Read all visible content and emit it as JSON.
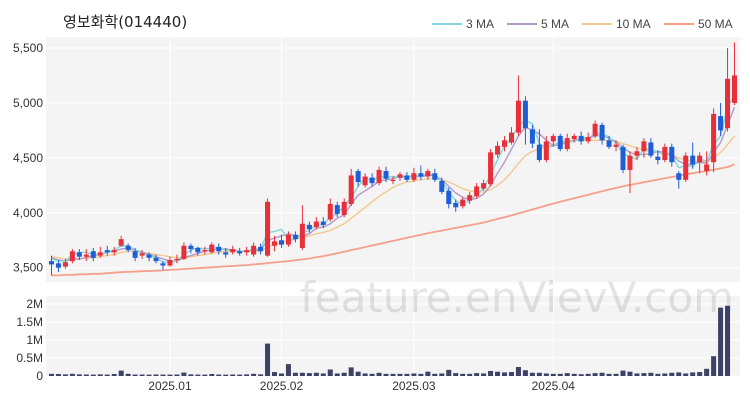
{
  "title": "영보화학(014440)",
  "watermark": "feature.enVievV.com",
  "legend": [
    {
      "label": "3 MA",
      "color": "#7fd6db"
    },
    {
      "label": "5 MA",
      "color": "#b39ac9"
    },
    {
      "label": "10 MA",
      "color": "#f2c98e"
    },
    {
      "label": "50 MA",
      "color": "#f4a08c"
    }
  ],
  "colors": {
    "up": "#e8303a",
    "down": "#1f5fd6",
    "volume": "#3d4266",
    "panel_bg": "#f4f4f4"
  },
  "chart_data": {
    "type": "candlestick",
    "x_tick_labels": [
      "2025.01",
      "2025.02",
      "2025.03",
      "2025.04"
    ],
    "price_axis": {
      "ticks": [
        3500,
        4000,
        4500,
        5000,
        5500
      ],
      "labels": [
        "3,500",
        "4,000",
        "4,500",
        "5,000",
        "5,500"
      ],
      "ylim": [
        3370,
        5600
      ]
    },
    "volume_axis": {
      "ticks": [
        0,
        500000,
        1000000,
        1500000,
        2000000
      ],
      "labels": [
        "0",
        "0.5M",
        "1M",
        "1.5M",
        "2M"
      ],
      "ylim": [
        0,
        2000000
      ]
    },
    "tick_positions": [
      17,
      33,
      52,
      72
    ],
    "candles": [
      [
        3560,
        3530,
        3610,
        3430
      ],
      [
        3540,
        3500,
        3570,
        3460
      ],
      [
        3510,
        3550,
        3580,
        3490
      ],
      [
        3560,
        3650,
        3670,
        3540
      ],
      [
        3640,
        3600,
        3670,
        3570
      ],
      [
        3600,
        3620,
        3670,
        3560
      ],
      [
        3650,
        3590,
        3680,
        3560
      ],
      [
        3610,
        3640,
        3690,
        3590
      ],
      [
        3660,
        3640,
        3700,
        3610
      ],
      [
        3640,
        3660,
        3690,
        3610
      ],
      [
        3700,
        3760,
        3790,
        3690
      ],
      [
        3700,
        3660,
        3720,
        3640
      ],
      [
        3650,
        3590,
        3680,
        3560
      ],
      [
        3610,
        3630,
        3660,
        3580
      ],
      [
        3620,
        3590,
        3640,
        3560
      ],
      [
        3590,
        3560,
        3620,
        3540
      ],
      [
        3540,
        3520,
        3560,
        3480
      ],
      [
        3520,
        3570,
        3600,
        3510
      ],
      [
        3570,
        3580,
        3620,
        3540
      ],
      [
        3580,
        3700,
        3730,
        3570
      ],
      [
        3700,
        3670,
        3720,
        3630
      ],
      [
        3680,
        3640,
        3690,
        3610
      ],
      [
        3660,
        3660,
        3690,
        3620
      ],
      [
        3640,
        3710,
        3730,
        3630
      ],
      [
        3690,
        3650,
        3720,
        3620
      ],
      [
        3640,
        3620,
        3680,
        3590
      ],
      [
        3640,
        3670,
        3700,
        3620
      ],
      [
        3650,
        3630,
        3680,
        3610
      ],
      [
        3640,
        3660,
        3690,
        3610
      ],
      [
        3620,
        3700,
        3730,
        3600
      ],
      [
        3690,
        3650,
        3720,
        3620
      ],
      [
        3610,
        4100,
        4130,
        3600
      ],
      [
        3700,
        3740,
        3790,
        3650
      ],
      [
        3750,
        3710,
        3800,
        3680
      ],
      [
        3710,
        3800,
        3830,
        3690
      ],
      [
        3800,
        3760,
        3830,
        3730
      ],
      [
        3680,
        3900,
        4070,
        3660
      ],
      [
        3890,
        3850,
        3920,
        3820
      ],
      [
        3870,
        3920,
        3960,
        3850
      ],
      [
        3920,
        3890,
        3960,
        3860
      ],
      [
        3940,
        4080,
        4130,
        3920
      ],
      [
        4070,
        3990,
        4100,
        3960
      ],
      [
        3980,
        4100,
        4130,
        3960
      ],
      [
        4080,
        4340,
        4400,
        4060
      ],
      [
        4380,
        4280,
        4400,
        4240
      ],
      [
        4250,
        4330,
        4360,
        4230
      ],
      [
        4320,
        4270,
        4360,
        4240
      ],
      [
        4270,
        4390,
        4420,
        4250
      ],
      [
        4380,
        4310,
        4420,
        4280
      ],
      [
        4300,
        4300,
        4330,
        4260
      ],
      [
        4320,
        4350,
        4370,
        4290
      ],
      [
        4340,
        4300,
        4370,
        4280
      ],
      [
        4300,
        4360,
        4410,
        4280
      ],
      [
        4360,
        4330,
        4430,
        4300
      ],
      [
        4330,
        4380,
        4400,
        4300
      ],
      [
        4360,
        4300,
        4400,
        4280
      ],
      [
        4290,
        4190,
        4320,
        4170
      ],
      [
        4200,
        4080,
        4230,
        4040
      ],
      [
        4090,
        4050,
        4120,
        4010
      ],
      [
        4060,
        4120,
        4140,
        4040
      ],
      [
        4110,
        4160,
        4190,
        4080
      ],
      [
        4150,
        4240,
        4270,
        4130
      ],
      [
        4220,
        4270,
        4300,
        4200
      ],
      [
        4260,
        4550,
        4580,
        4240
      ],
      [
        4530,
        4610,
        4650,
        4500
      ],
      [
        4600,
        4660,
        4700,
        4560
      ],
      [
        4640,
        4730,
        4780,
        4620
      ],
      [
        4730,
        5020,
        5250,
        4700
      ],
      [
        5020,
        4770,
        5060,
        4620
      ],
      [
        4760,
        4630,
        4800,
        4590
      ],
      [
        4620,
        4480,
        4760,
        4460
      ],
      [
        4480,
        4650,
        4700,
        4460
      ],
      [
        4650,
        4700,
        4720,
        4600
      ],
      [
        4700,
        4580,
        4720,
        4560
      ],
      [
        4580,
        4680,
        4720,
        4560
      ],
      [
        4670,
        4700,
        4720,
        4640
      ],
      [
        4700,
        4650,
        4740,
        4620
      ],
      [
        4650,
        4690,
        4730,
        4630
      ],
      [
        4700,
        4810,
        4840,
        4680
      ],
      [
        4800,
        4660,
        4820,
        4620
      ],
      [
        4660,
        4600,
        4700,
        4580
      ],
      [
        4600,
        4620,
        4660,
        4560
      ],
      [
        4600,
        4390,
        4620,
        4360
      ],
      [
        4390,
        4520,
        4560,
        4180
      ],
      [
        4520,
        4560,
        4600,
        4480
      ],
      [
        4560,
        4650,
        4680,
        4500
      ],
      [
        4640,
        4520,
        4680,
        4500
      ],
      [
        4510,
        4480,
        4570,
        4440
      ],
      [
        4480,
        4600,
        4630,
        4460
      ],
      [
        4600,
        4460,
        4630,
        4420
      ],
      [
        4360,
        4300,
        4380,
        4220
      ],
      [
        4300,
        4520,
        4550,
        4280
      ],
      [
        4520,
        4440,
        4640,
        4400
      ],
      [
        4460,
        4520,
        4550,
        4360
      ],
      [
        4380,
        4440,
        4560,
        4340
      ],
      [
        4460,
        4900,
        4950,
        4370
      ],
      [
        4880,
        4750,
        5000,
        4700
      ],
      [
        4770,
        5220,
        5500,
        4740
      ],
      [
        5000,
        5250,
        5550,
        4980
      ]
    ],
    "volumes": [
      60000,
      55000,
      45000,
      60000,
      45000,
      42000,
      38000,
      45000,
      40000,
      55000,
      150000,
      60000,
      40000,
      42000,
      38000,
      42000,
      40000,
      38000,
      42000,
      95000,
      45000,
      40000,
      38000,
      55000,
      40000,
      38000,
      42000,
      38000,
      45000,
      60000,
      45000,
      900000,
      110000,
      70000,
      330000,
      90000,
      90000,
      80000,
      90000,
      70000,
      180000,
      70000,
      90000,
      240000,
      120000,
      70000,
      60000,
      90000,
      60000,
      60000,
      60000,
      60000,
      70000,
      60000,
      120000,
      60000,
      70000,
      170000,
      80000,
      60000,
      60000,
      80000,
      70000,
      140000,
      120000,
      100000,
      110000,
      250000,
      160000,
      90000,
      90000,
      70000,
      60000,
      60000,
      80000,
      60000,
      50000,
      60000,
      80000,
      90000,
      60000,
      60000,
      150000,
      120000,
      70000,
      80000,
      90000,
      60000,
      70000,
      90000,
      100000,
      70000,
      100000,
      110000,
      200000,
      550000,
      1900000,
      1950000
    ],
    "ma_lines": [
      {
        "label": "3 MA",
        "values": [
          3580,
          3560,
          3560,
          3620,
          3640,
          3640,
          3620,
          3620,
          3640,
          3660,
          3700,
          3700,
          3660,
          3630,
          3610,
          3590,
          3550,
          3550,
          3560,
          3620,
          3660,
          3680,
          3670,
          3680,
          3680,
          3660,
          3650,
          3650,
          3650,
          3670,
          3670,
          3820,
          3830,
          3850,
          3750,
          3760,
          3820,
          3840,
          3890,
          3890,
          3960,
          3990,
          4060,
          4140,
          4240,
          4320,
          4290,
          4330,
          4320,
          4330,
          4320,
          4320,
          4340,
          4330,
          4360,
          4340,
          4290,
          4190,
          4110,
          4080,
          4110,
          4170,
          4220,
          4350,
          4480,
          4610,
          4670,
          4800,
          4840,
          4810,
          4630,
          4590,
          4610,
          4650,
          4650,
          4650,
          4680,
          4680,
          4720,
          4720,
          4690,
          4630,
          4540,
          4510,
          4490,
          4580,
          4580,
          4550,
          4540,
          4520,
          4410,
          4430,
          4420,
          4490,
          4470,
          4620,
          4700,
          4960,
          5070
        ]
      },
      {
        "label": "5 MA",
        "values": [
          3590,
          3570,
          3560,
          3580,
          3580,
          3590,
          3610,
          3620,
          3640,
          3650,
          3670,
          3680,
          3660,
          3640,
          3620,
          3600,
          3580,
          3560,
          3560,
          3590,
          3610,
          3630,
          3650,
          3660,
          3670,
          3670,
          3660,
          3650,
          3650,
          3660,
          3660,
          3750,
          3770,
          3790,
          3810,
          3790,
          3790,
          3810,
          3860,
          3870,
          3900,
          3950,
          3980,
          4080,
          4160,
          4200,
          4240,
          4290,
          4300,
          4310,
          4330,
          4330,
          4330,
          4330,
          4340,
          4340,
          4300,
          4240,
          4180,
          4140,
          4120,
          4130,
          4170,
          4250,
          4360,
          4460,
          4580,
          4700,
          4780,
          4750,
          4720,
          4660,
          4610,
          4620,
          4640,
          4660,
          4670,
          4680,
          4700,
          4700,
          4680,
          4650,
          4590,
          4550,
          4530,
          4530,
          4540,
          4560,
          4550,
          4530,
          4470,
          4440,
          4440,
          4460,
          4450,
          4550,
          4640,
          4800,
          4960
        ]
      },
      {
        "label": "10 MA",
        "values": [
          3600,
          3590,
          3580,
          3580,
          3580,
          3590,
          3590,
          3600,
          3610,
          3620,
          3640,
          3650,
          3650,
          3640,
          3630,
          3620,
          3610,
          3600,
          3590,
          3590,
          3600,
          3610,
          3620,
          3630,
          3640,
          3650,
          3650,
          3650,
          3650,
          3650,
          3650,
          3690,
          3710,
          3730,
          3750,
          3760,
          3780,
          3790,
          3810,
          3820,
          3840,
          3870,
          3900,
          3950,
          4000,
          4050,
          4100,
          4150,
          4190,
          4230,
          4260,
          4280,
          4290,
          4300,
          4310,
          4310,
          4300,
          4280,
          4250,
          4220,
          4200,
          4190,
          4190,
          4210,
          4250,
          4300,
          4370,
          4450,
          4520,
          4560,
          4580,
          4600,
          4620,
          4640,
          4650,
          4660,
          4660,
          4660,
          4660,
          4660,
          4660,
          4650,
          4630,
          4610,
          4590,
          4570,
          4560,
          4550,
          4540,
          4530,
          4500,
          4480,
          4470,
          4470,
          4460,
          4500,
          4550,
          4620,
          4700
        ]
      },
      {
        "label": "50 MA",
        "values": [
          3430,
          3430,
          3435,
          3435,
          3440,
          3440,
          3445,
          3445,
          3450,
          3455,
          3460,
          3462,
          3465,
          3468,
          3470,
          3473,
          3476,
          3480,
          3484,
          3488,
          3492,
          3496,
          3500,
          3504,
          3508,
          3512,
          3516,
          3520,
          3524,
          3530,
          3536,
          3542,
          3548,
          3554,
          3560,
          3568,
          3576,
          3584,
          3595,
          3606,
          3618,
          3632,
          3646,
          3660,
          3674,
          3688,
          3702,
          3716,
          3730,
          3744,
          3758,
          3772,
          3786,
          3800,
          3814,
          3826,
          3838,
          3850,
          3862,
          3874,
          3886,
          3898,
          3912,
          3928,
          3944,
          3960,
          3976,
          3994,
          4012,
          4030,
          4048,
          4066,
          4084,
          4100,
          4116,
          4132,
          4148,
          4164,
          4180,
          4196,
          4212,
          4226,
          4240,
          4254,
          4266,
          4278,
          4290,
          4302,
          4314,
          4326,
          4338,
          4350,
          4360,
          4370,
          4380,
          4392,
          4404,
          4416,
          4440
        ]
      }
    ]
  }
}
